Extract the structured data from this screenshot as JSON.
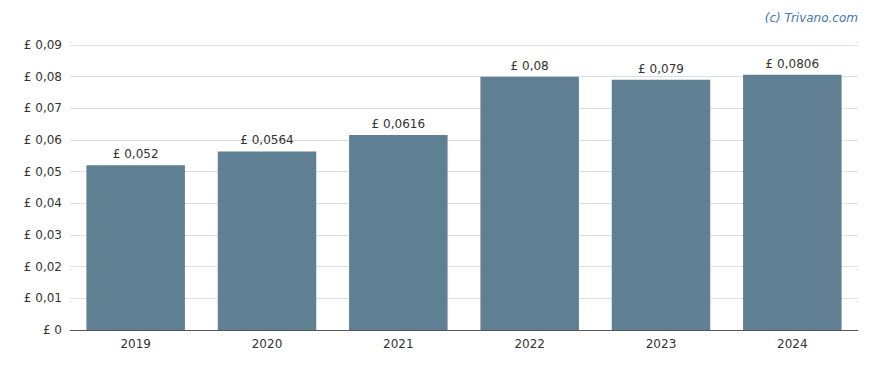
{
  "chart_data": {
    "type": "bar",
    "categories": [
      "2019",
      "2020",
      "2021",
      "2022",
      "2023",
      "2024"
    ],
    "values": [
      0.052,
      0.0564,
      0.0616,
      0.08,
      0.079,
      0.0806
    ],
    "value_labels": [
      "£ 0,052",
      "£ 0,0564",
      "£ 0,0616",
      "£ 0,08",
      "£ 0,079",
      "£ 0,0806"
    ],
    "data_labels": true,
    "color": "#5f7f93",
    "ylim": [
      0,
      0.09
    ],
    "yticks": [
      {
        "value": 0,
        "label": "£ 0"
      },
      {
        "value": 0.01,
        "label": "£ 0,01"
      },
      {
        "value": 0.02,
        "label": "£ 0,02"
      },
      {
        "value": 0.03,
        "label": "£ 0,03"
      },
      {
        "value": 0.04,
        "label": "£ 0,04"
      },
      {
        "value": 0.05,
        "label": "£ 0,05"
      },
      {
        "value": 0.06,
        "label": "£ 0,06"
      },
      {
        "value": 0.07,
        "label": "£ 0,07"
      },
      {
        "value": 0.08,
        "label": "£ 0,08"
      },
      {
        "value": 0.09,
        "label": "£ 0,09"
      }
    ],
    "grid": true,
    "annotations": [
      {
        "text": "(c) Trivano.com",
        "color": "#4477aa"
      }
    ]
  }
}
